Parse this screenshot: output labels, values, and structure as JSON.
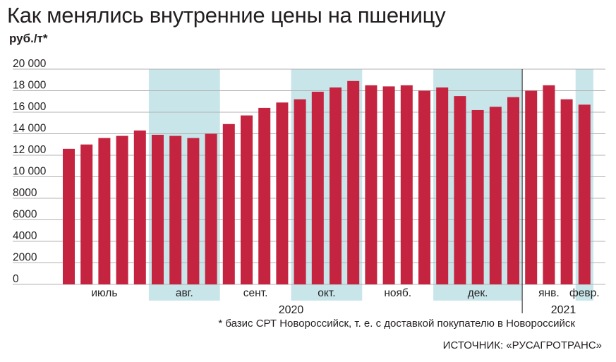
{
  "title": "Как менялись внутренние цены на пшеницу",
  "unit_label": "руб./т*",
  "footnote": "* базис СРТ Новороссийск, т. е. с доставкой покупателю в Новороссийск",
  "source": "ИСТОЧНИК: «РУСАГРОТРАНС»",
  "colors": {
    "bar": "#c4243f",
    "band": "#c8e6ea",
    "grid": "#b3b3b3",
    "text": "#231f20"
  },
  "chart_data": {
    "type": "bar",
    "ylim": [
      0,
      20000
    ],
    "y_ticks": [
      {
        "value": 0,
        "label": "0"
      },
      {
        "value": 2000,
        "label": "2000"
      },
      {
        "value": 4000,
        "label": "4000"
      },
      {
        "value": 6000,
        "label": "6000"
      },
      {
        "value": 8000,
        "label": "8000"
      },
      {
        "value": 10000,
        "label": "10 000"
      },
      {
        "value": 12000,
        "label": "12 000"
      },
      {
        "value": 14000,
        "label": "14 000"
      },
      {
        "value": 16000,
        "label": "16 000"
      },
      {
        "value": 18000,
        "label": "18 000"
      },
      {
        "value": 20000,
        "label": "20 000"
      }
    ],
    "grid": true,
    "values": [
      12600,
      13000,
      13600,
      13800,
      14300,
      13900,
      13800,
      13600,
      14000,
      14900,
      15700,
      16400,
      16900,
      17200,
      17900,
      18300,
      18900,
      18500,
      18400,
      18500,
      18000,
      18300,
      17500,
      16200,
      16500,
      17400,
      18000,
      18500,
      17200,
      16700
    ],
    "months": [
      {
        "label": "июль",
        "count": 5,
        "shaded": false
      },
      {
        "label": "авг.",
        "count": 4,
        "shaded": true
      },
      {
        "label": "сент.",
        "count": 4,
        "shaded": false
      },
      {
        "label": "окт.",
        "count": 4,
        "shaded": true
      },
      {
        "label": "нояб.",
        "count": 4,
        "shaded": false
      },
      {
        "label": "дек.",
        "count": 5,
        "shaded": true
      },
      {
        "label": "янв.",
        "count": 3,
        "shaded": false
      },
      {
        "label": "февр.",
        "count": 1,
        "shaded": true
      }
    ],
    "years": [
      {
        "label": "2020",
        "count": 26
      },
      {
        "label": "2021",
        "count": 4
      }
    ]
  }
}
